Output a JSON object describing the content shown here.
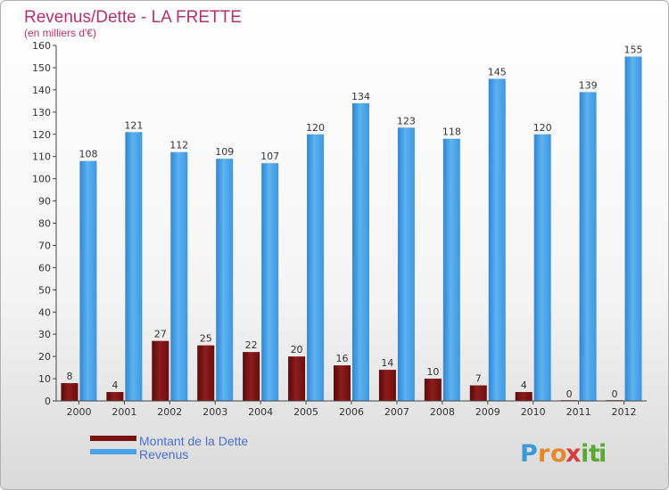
{
  "chart_data": {
    "type": "bar",
    "title": "Revenus/Dette - LA FRETTE",
    "subtitle": "(en milliers d'€)",
    "categories": [
      "2000",
      "2001",
      "2002",
      "2003",
      "2004",
      "2005",
      "2006",
      "2007",
      "2008",
      "2009",
      "2010",
      "2011",
      "2012"
    ],
    "series": [
      {
        "name": "Montant de la Dette",
        "color": "#7a1212",
        "values": [
          8,
          4,
          27,
          25,
          22,
          20,
          16,
          14,
          10,
          7,
          4,
          0,
          0
        ]
      },
      {
        "name": "Revenus",
        "color": "#4aa3e8",
        "values": [
          108,
          121,
          112,
          109,
          107,
          120,
          134,
          123,
          118,
          145,
          120,
          139,
          155
        ]
      }
    ],
    "ylim": [
      0,
      160
    ],
    "yticks": [
      0,
      10,
      20,
      30,
      40,
      50,
      60,
      70,
      80,
      90,
      100,
      110,
      120,
      130,
      140,
      150,
      160
    ],
    "grid": false,
    "legend": "bottom-left"
  },
  "logo": {
    "letters": [
      "P",
      "r",
      "o",
      "x",
      "i",
      "t",
      "i"
    ],
    "colors": [
      "#3a9ad9",
      "#e8872a",
      "#e8872a",
      "#d63c3c",
      "#5aa832",
      "#5aa832",
      "#5aa832"
    ]
  }
}
